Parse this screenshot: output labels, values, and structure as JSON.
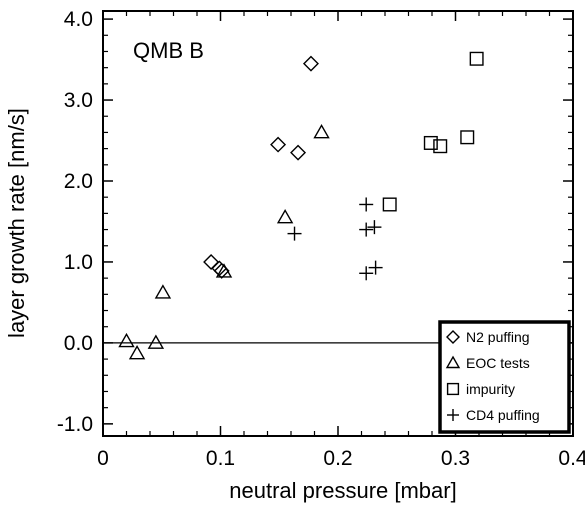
{
  "chart_data": {
    "type": "scatter",
    "title": "QMB B",
    "xlabel": "neutral pressure [mbar]",
    "ylabel": "layer growth rate [nm/s]",
    "xlim": [
      0,
      0.4
    ],
    "ylim": [
      -1.15,
      4.1
    ],
    "x_ticks": [
      "0",
      "0.1",
      "0.2",
      "0.3",
      "0.4"
    ],
    "y_ticks": [
      "-1.0",
      "0.0",
      "1.0",
      "2.0",
      "3.0",
      "4.0"
    ],
    "x_tick_values": [
      0,
      0.1,
      0.2,
      0.3,
      0.4
    ],
    "y_tick_values": [
      -1.0,
      0.0,
      1.0,
      2.0,
      3.0,
      4.0
    ],
    "reference_line_y": 0.0,
    "grid": false,
    "legend_position": "bottom-right",
    "series": [
      {
        "name": "N2 puffing",
        "marker": "diamond",
        "points": [
          [
            0.177,
            3.45
          ],
          [
            0.149,
            2.45
          ],
          [
            0.166,
            2.35
          ],
          [
            0.092,
            1.0
          ],
          [
            0.099,
            0.92
          ],
          [
            0.101,
            0.89
          ]
        ]
      },
      {
        "name": "EOC tests",
        "marker": "triangle",
        "points": [
          [
            0.186,
            2.6
          ],
          [
            0.155,
            1.55
          ],
          [
            0.051,
            0.62
          ],
          [
            0.02,
            0.02
          ],
          [
            0.029,
            -0.13
          ],
          [
            0.045,
            0.0
          ],
          [
            0.103,
            0.88
          ]
        ]
      },
      {
        "name": "impurity",
        "marker": "square",
        "points": [
          [
            0.318,
            3.51
          ],
          [
            0.279,
            2.47
          ],
          [
            0.287,
            2.43
          ],
          [
            0.31,
            2.54
          ],
          [
            0.244,
            1.71
          ]
        ]
      },
      {
        "name": "CD4 puffing",
        "marker": "plus",
        "points": [
          [
            0.224,
            1.71
          ],
          [
            0.163,
            1.35
          ],
          [
            0.224,
            1.4
          ],
          [
            0.231,
            1.43
          ],
          [
            0.224,
            0.86
          ],
          [
            0.232,
            0.93
          ]
        ]
      }
    ]
  }
}
